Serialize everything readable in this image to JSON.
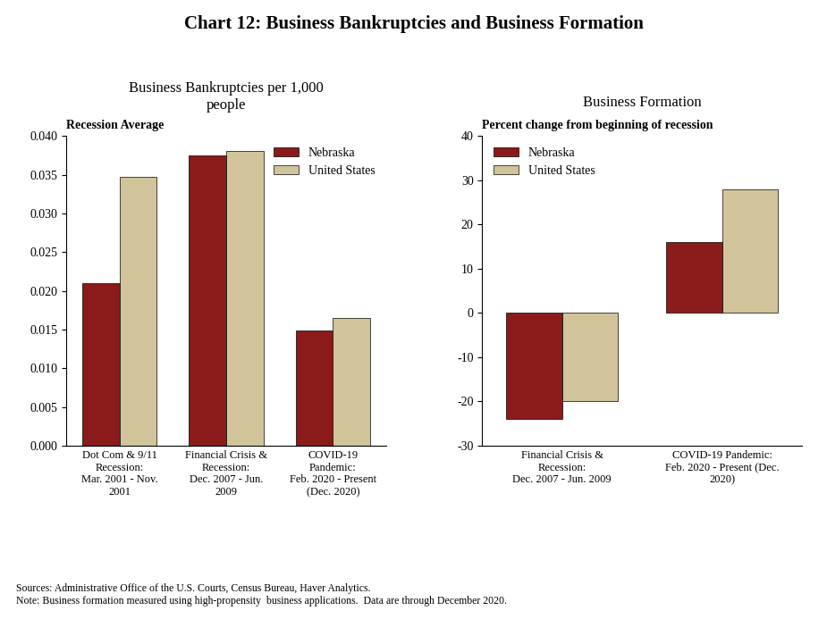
{
  "title": "Chart 12: Business Bankruptcies and Business Formation",
  "annotations": [
    "Sources: Administrative Office of the U.S. Courts, Census Bureau, Haver Analytics.\nNote: Business formation measured using high-propensity  business applications.  Data are through December 2020."
  ],
  "chart_data": [
    {
      "type": "bar",
      "title": "Business Bankruptcies per 1,000\npeople",
      "subtitle": "Recession Average",
      "categories": [
        "Dot Com & 9/11\nRecession:\nMar. 2001 - Nov.\n2001",
        "Financial Crisis &\nRecession:\nDec. 2007 - Jun.\n2009",
        "COVID-19\nPandemic:\nFeb. 2020 - Present\n(Dec. 2020)"
      ],
      "series": [
        {
          "name": "Nebraska",
          "color": "#8B1A1A",
          "values": [
            0.021,
            0.0375,
            0.0149
          ]
        },
        {
          "name": "United States",
          "color": "#D2C49A",
          "values": [
            0.0347,
            0.0381,
            0.0165
          ]
        }
      ],
      "ylim": [
        0.0,
        0.04
      ],
      "yticks": [
        {
          "value": 0.0,
          "label": "0.000"
        },
        {
          "value": 0.005,
          "label": "0.005"
        },
        {
          "value": 0.01,
          "label": "0.010"
        },
        {
          "value": 0.015,
          "label": "0.015"
        },
        {
          "value": 0.02,
          "label": "0.020"
        },
        {
          "value": 0.025,
          "label": "0.025"
        },
        {
          "value": 0.03,
          "label": "0.030"
        },
        {
          "value": 0.035,
          "label": "0.035"
        },
        {
          "value": 0.04,
          "label": "0.040"
        }
      ],
      "legend": "upper right",
      "grid": false
    },
    {
      "type": "bar",
      "title": "Business Formation",
      "subtitle": "Percent change from beginning of recession",
      "categories": [
        "Financial Crisis &\nRecession:\nDec. 2007 - Jun. 2009",
        "COVID-19 Pandemic:\nFeb. 2020 - Present (Dec.\n2020)"
      ],
      "series": [
        {
          "name": "Nebraska",
          "color": "#8B1A1A",
          "values": [
            -24.0,
            16.0
          ]
        },
        {
          "name": "United States",
          "color": "#D2C49A",
          "values": [
            -20.0,
            28.0
          ]
        }
      ],
      "ylim": [
        -30,
        40
      ],
      "yticks": [
        -30,
        -20,
        -10,
        0,
        10,
        20,
        30,
        40
      ],
      "legend": "upper left",
      "grid": false
    }
  ]
}
